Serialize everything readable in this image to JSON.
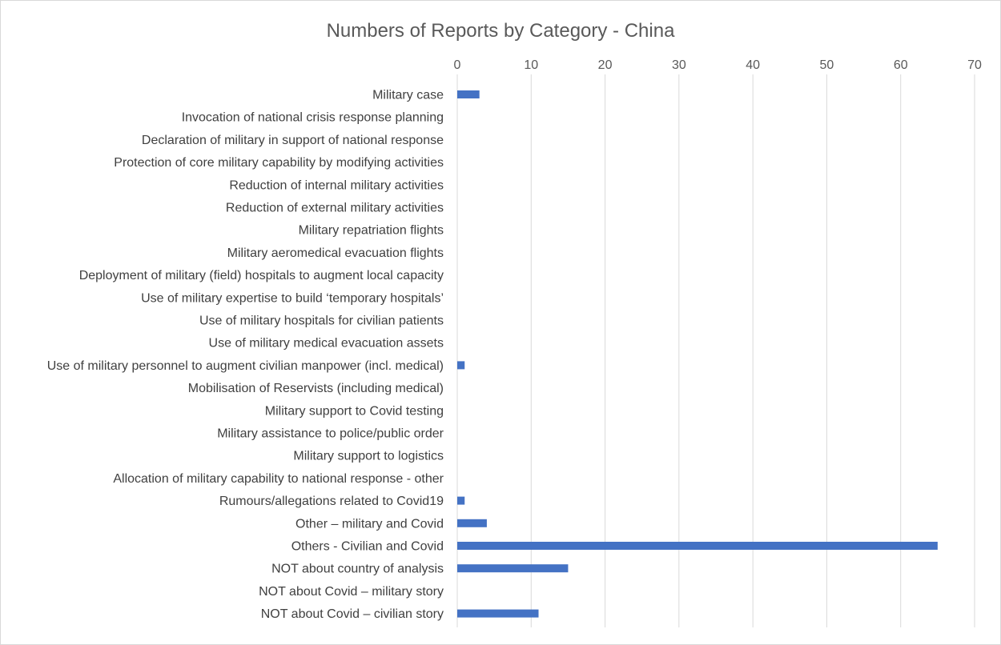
{
  "chart_data": {
    "type": "bar",
    "orientation": "horizontal",
    "title": "Numbers of Reports by Category - China",
    "xlabel": "",
    "ylabel": "",
    "xlim": [
      0,
      70
    ],
    "x_ticks": [
      0,
      10,
      20,
      30,
      40,
      50,
      60,
      70
    ],
    "x_axis_position": "top",
    "grid": true,
    "legend": "none",
    "bar_color": "#4472c4",
    "categories": [
      "Military case",
      "Invocation of national crisis response planning",
      "Declaration of military in support of national response",
      "Protection of core military capability by modifying activities",
      "Reduction of internal military activities",
      "Reduction of external military activities",
      "Military repatriation flights",
      "Military aeromedical evacuation flights",
      "Deployment of military (field) hospitals to augment local capacity",
      "Use of military expertise to build ‘temporary hospitals’",
      "Use of military hospitals for civilian patients",
      "Use of military medical evacuation assets",
      "Use of military personnel to augment civilian manpower (incl. medical)",
      "Mobilisation of Reservists (including medical)",
      "Military support to Covid testing",
      "Military assistance to police/public order",
      "Military support to logistics",
      "Allocation of military capability to national response - other",
      "Rumours/allegations related to Covid19",
      "Other – military and Covid",
      "Others - Civilian and Covid",
      "NOT about country of analysis",
      "NOT about Covid – military story",
      "NOT about Covid – civilian story"
    ],
    "values": [
      3,
      0,
      0,
      0,
      0,
      0,
      0,
      0,
      0,
      0,
      0,
      0,
      1,
      0,
      0,
      0,
      0,
      0,
      1,
      4,
      65,
      15,
      0,
      11
    ]
  }
}
